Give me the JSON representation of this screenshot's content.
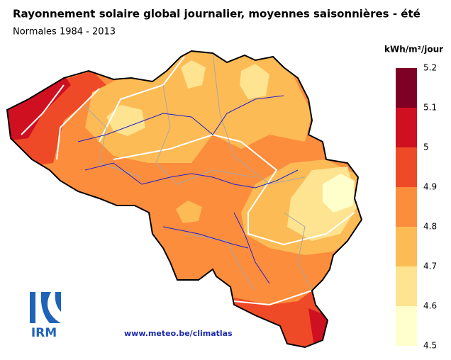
{
  "header": {
    "title": "Rayonnement solaire global journalier, moyennes saisonnières - été",
    "subtitle": "Normales 1984 - 2013"
  },
  "legend": {
    "unit": "kWh/m²/jour",
    "ticks": [
      4.5,
      4.6,
      4.7,
      4.8,
      4.9,
      5,
      5.1,
      5.2
    ],
    "colors": [
      "#ffffcc",
      "#fee391",
      "#fdbb55",
      "#fb8d3d",
      "#ef4a28",
      "#cf1020",
      "#7f0025"
    ]
  },
  "footer": {
    "url": "www.meteo.be/climatlas"
  },
  "logo": {
    "text": "IRM"
  }
}
